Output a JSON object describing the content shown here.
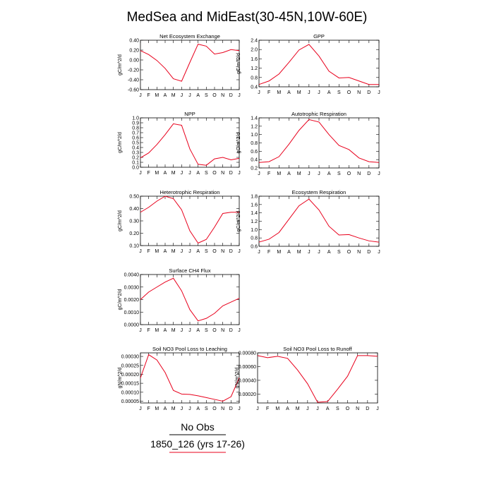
{
  "figure": {
    "title": "MedSea and MidEast(30-45N,10W-60E)",
    "legend": [
      {
        "label": "No Obs",
        "color": "#000000"
      },
      {
        "label": "1850_126 (yrs 17-26)",
        "color": "#e8001c"
      }
    ]
  },
  "chart_data": [
    {
      "type": "line",
      "title": "Net Ecosystem Exchange",
      "ylabel": "gC/m^2/d",
      "categories": [
        "J",
        "F",
        "M",
        "A",
        "M",
        "J",
        "J",
        "A",
        "S",
        "O",
        "N",
        "D",
        "J"
      ],
      "ylim": [
        -0.6,
        0.4
      ],
      "yticks": [
        -0.6,
        -0.4,
        -0.2,
        0.0,
        0.2,
        0.4
      ],
      "yticklabels": [
        "-0.60",
        "-0.40",
        "-0.20",
        "0.00",
        "0.20",
        "0.40"
      ],
      "series": [
        {
          "color": "#e8001c",
          "values": [
            0.19,
            0.11,
            -0.01,
            -0.17,
            -0.38,
            -0.43,
            -0.05,
            0.32,
            0.28,
            0.12,
            0.15,
            0.21,
            0.19
          ]
        }
      ]
    },
    {
      "type": "line",
      "title": "GPP",
      "ylabel": "gC/m^2/d",
      "categories": [
        "J",
        "F",
        "M",
        "A",
        "M",
        "J",
        "J",
        "A",
        "S",
        "O",
        "N",
        "D",
        "J"
      ],
      "ylim": [
        0.4,
        2.4
      ],
      "yticks": [
        0.4,
        0.8,
        1.2,
        1.6,
        2.0,
        2.4
      ],
      "yticklabels": [
        "0.4",
        "0.8",
        "1.2",
        "1.6",
        "2.0",
        "2.4"
      ],
      "series": [
        {
          "color": "#e8001c",
          "values": [
            0.5,
            0.65,
            0.95,
            1.45,
            1.98,
            2.22,
            1.72,
            1.07,
            0.78,
            0.8,
            0.65,
            0.5,
            0.5
          ]
        }
      ]
    },
    {
      "type": "line",
      "title": "NPP",
      "ylabel": "gC/m^2/d",
      "categories": [
        "J",
        "F",
        "M",
        "A",
        "M",
        "J",
        "J",
        "A",
        "S",
        "O",
        "N",
        "D",
        "J"
      ],
      "ylim": [
        0.0,
        1.0
      ],
      "yticks": [
        0.0,
        0.1,
        0.2,
        0.3,
        0.4,
        0.5,
        0.6,
        0.7,
        0.8,
        0.9,
        1.0
      ],
      "yticklabels": [
        "0.0",
        "0.1",
        "0.2",
        "0.3",
        "0.4",
        "0.5",
        "0.6",
        "0.7",
        "0.8",
        "0.9",
        "1.0"
      ],
      "series": [
        {
          "color": "#e8001c",
          "values": [
            0.19,
            0.29,
            0.46,
            0.66,
            0.88,
            0.85,
            0.37,
            0.06,
            0.04,
            0.17,
            0.2,
            0.15,
            0.18
          ]
        }
      ]
    },
    {
      "type": "line",
      "title": "Autotrophic Respiration",
      "ylabel": "gC/m^2/d",
      "categories": [
        "J",
        "F",
        "M",
        "A",
        "M",
        "J",
        "J",
        "A",
        "S",
        "O",
        "N",
        "D",
        "J"
      ],
      "ylim": [
        0.2,
        1.4
      ],
      "yticks": [
        0.2,
        0.4,
        0.6,
        0.8,
        1.0,
        1.2,
        1.4
      ],
      "yticklabels": [
        "0.2",
        "0.4",
        "0.6",
        "0.8",
        "1.0",
        "1.2",
        "1.4"
      ],
      "series": [
        {
          "color": "#e8001c",
          "values": [
            0.33,
            0.35,
            0.47,
            0.77,
            1.1,
            1.36,
            1.3,
            1.0,
            0.74,
            0.64,
            0.44,
            0.35,
            0.33
          ]
        }
      ]
    },
    {
      "type": "line",
      "title": "Heterotrophic Respiration",
      "ylabel": "gC/m^2/d",
      "categories": [
        "J",
        "F",
        "M",
        "A",
        "M",
        "J",
        "J",
        "A",
        "S",
        "O",
        "N",
        "D",
        "J"
      ],
      "ylim": [
        0.1,
        0.5
      ],
      "yticks": [
        0.1,
        0.2,
        0.3,
        0.4,
        0.5
      ],
      "yticklabels": [
        "0.10",
        "0.20",
        "0.30",
        "0.40",
        "0.50"
      ],
      "series": [
        {
          "color": "#e8001c",
          "values": [
            0.37,
            0.41,
            0.46,
            0.5,
            0.48,
            0.39,
            0.22,
            0.12,
            0.15,
            0.25,
            0.36,
            0.37,
            0.37
          ]
        }
      ]
    },
    {
      "type": "line",
      "title": "Ecosystem Respiration",
      "ylabel": "gC/m^2/d",
      "categories": [
        "J",
        "F",
        "M",
        "A",
        "M",
        "J",
        "J",
        "A",
        "S",
        "O",
        "N",
        "D",
        "J"
      ],
      "ylim": [
        0.6,
        1.8
      ],
      "yticks": [
        0.6,
        0.8,
        1.0,
        1.2,
        1.4,
        1.6,
        1.8
      ],
      "yticklabels": [
        "0.6",
        "0.8",
        "1.0",
        "1.2",
        "1.4",
        "1.6",
        "1.8"
      ],
      "series": [
        {
          "color": "#e8001c",
          "values": [
            0.7,
            0.77,
            0.93,
            1.25,
            1.57,
            1.73,
            1.47,
            1.08,
            0.87,
            0.88,
            0.8,
            0.73,
            0.7
          ]
        }
      ]
    },
    {
      "type": "line",
      "title": "Surface CH4 Flux",
      "ylabel": "gC/m^2/d",
      "categories": [
        "J",
        "F",
        "M",
        "A",
        "M",
        "J",
        "J",
        "A",
        "S",
        "O",
        "N",
        "D",
        "J"
      ],
      "ylim": [
        0.0,
        0.004
      ],
      "yticks": [
        0.0,
        0.001,
        0.002,
        0.003,
        0.004
      ],
      "yticklabels": [
        "0.0000",
        "0.0010",
        "0.0020",
        "0.0030",
        "0.0040"
      ],
      "series": [
        {
          "color": "#e8001c",
          "values": [
            0.002,
            0.0026,
            0.003,
            0.0034,
            0.0037,
            0.0027,
            0.0012,
            0.0003,
            0.0005,
            0.0009,
            0.0015,
            0.0018,
            0.0021
          ]
        }
      ]
    },
    {
      "type": "line",
      "title": "Soil NO3 Pool Loss to Leaching",
      "ylabel": "gN/m^2/d",
      "categories": [
        "J",
        "F",
        "M",
        "A",
        "M",
        "J",
        "J",
        "A",
        "S",
        "O",
        "N",
        "D",
        "J"
      ],
      "ylim": [
        4e-05,
        0.00032
      ],
      "yticks": [
        5e-05,
        0.0001,
        0.00015,
        0.0002,
        0.00025,
        0.0003
      ],
      "yticklabels": [
        "0.00005",
        "0.00010",
        "0.00015",
        "0.00020",
        "0.00025",
        "0.00030"
      ],
      "series": [
        {
          "color": "#e8001c",
          "values": [
            0.00018,
            0.00031,
            0.00028,
            0.00021,
            0.00011,
            9e-05,
            8.8e-05,
            8e-05,
            7e-05,
            6e-05,
            5e-05,
            7.5e-05,
            0.00018
          ]
        }
      ]
    },
    {
      "type": "line",
      "title": "Soil NO3 Pool Loss to Runoff",
      "ylabel": "gN/m^2/d",
      "categories": [
        "J",
        "F",
        "M",
        "A",
        "M",
        "J",
        "J",
        "A",
        "S",
        "O",
        "N",
        "D",
        "J"
      ],
      "ylim": [
        7e-05,
        0.0008
      ],
      "yticks": [
        0.0002,
        0.0004,
        0.0006,
        0.0008
      ],
      "yticklabels": [
        "0.00020",
        "0.00040",
        "0.00060",
        "0.00080"
      ],
      "series": [
        {
          "color": "#e8001c",
          "values": [
            0.00076,
            0.00073,
            0.00075,
            0.00072,
            0.00055,
            0.00035,
            8e-05,
            9e-05,
            0.00027,
            0.00046,
            0.00076,
            0.00076,
            0.00075
          ]
        }
      ]
    }
  ]
}
